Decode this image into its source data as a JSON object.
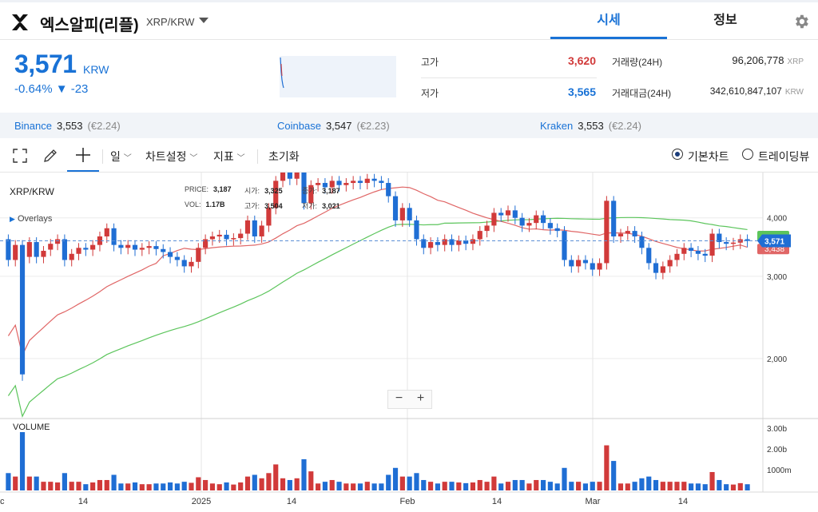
{
  "header": {
    "coin_name": "엑스알피(리플)",
    "pair": "XRP/KRW",
    "tabs": [
      "시세",
      "정보"
    ]
  },
  "ticker": {
    "price": "3,571",
    "unit": "KRW",
    "change_pct": "-0.64%",
    "change_abs": "▼ -23"
  },
  "stats": {
    "high_label": "고가",
    "high_value": "3,620",
    "low_label": "저가",
    "low_value": "3,565",
    "volume_label": "거래량(24H)",
    "volume_value": "96,206,778",
    "volume_unit": "XRP",
    "amount_label": "거래대금(24H)",
    "amount_value": "342,610,847,107",
    "amount_unit": "KRW"
  },
  "exchanges": [
    {
      "name": "Binance",
      "price": "3,553",
      "sub": "(€2.24)"
    },
    {
      "name": "Coinbase",
      "price": "3,547",
      "sub": "(€2.23)"
    },
    {
      "name": "Kraken",
      "price": "3,553",
      "sub": "(€2.24)"
    }
  ],
  "toolbar": {
    "period": "일",
    "chart_settings": "차트설정",
    "indicators": "지표",
    "reset": "초기화",
    "basic_chart": "기본차트",
    "tradingview": "트레이딩뷰"
  },
  "chart": {
    "symbol": "XRP/KRW",
    "overlays": "Overlays",
    "ohlc": {
      "price_label": "PRICE:",
      "price": "3,187",
      "open_label": "시가:",
      "open": "3,325",
      "close_label": "종가:",
      "close": "3,187",
      "vol_label": "VOL:",
      "vol": "1.17B",
      "high_label": "고가:",
      "high": "3,504",
      "low_label": "저가:",
      "low": "3,021"
    },
    "y_ticks": [
      "4,000",
      "3,000",
      "2,000"
    ],
    "current_price_tag": "3,571",
    "green_tag": "3,6xx",
    "red_tag": "3,438",
    "volume_label": "VOLUME",
    "volume_ticks": [
      "3.00b",
      "2.00b",
      "1000m"
    ],
    "x_ticks": [
      "c",
      "14",
      "2025",
      "14",
      "Feb",
      "14",
      "Mar",
      "14"
    ],
    "zoom_minus": "−",
    "zoom_plus": "+"
  },
  "colors": {
    "accent": "#1972d6",
    "up": "#d13a3a",
    "down": "#1f6ed4",
    "ma_long": "#5cc55c",
    "ma_short": "#e06666"
  },
  "chart_data": {
    "type": "candlestick",
    "title": "XRP/KRW",
    "ylim": [
      1500,
      5000
    ],
    "y_scale": "log",
    "candles": [
      {
        "o": 3600,
        "c": 3250,
        "dir": "down"
      },
      {
        "o": 3250,
        "c": 3500,
        "dir": "up"
      },
      {
        "o": 3500,
        "c": 1850,
        "dir": "down"
      },
      {
        "o": 3300,
        "c": 3550,
        "dir": "up"
      },
      {
        "o": 3550,
        "c": 3300,
        "dir": "down"
      },
      {
        "o": 3300,
        "c": 3400,
        "dir": "up"
      },
      {
        "o": 3420,
        "c": 3520,
        "dir": "up"
      },
      {
        "o": 3520,
        "c": 3600,
        "dir": "up"
      },
      {
        "o": 3600,
        "c": 3250,
        "dir": "down"
      },
      {
        "o": 3250,
        "c": 3350,
        "dir": "up"
      },
      {
        "o": 3350,
        "c": 3450,
        "dir": "up"
      },
      {
        "o": 3450,
        "c": 3420,
        "dir": "down"
      },
      {
        "o": 3420,
        "c": 3500,
        "dir": "up"
      },
      {
        "o": 3500,
        "c": 3650,
        "dir": "up"
      },
      {
        "o": 3650,
        "c": 3800,
        "dir": "up"
      },
      {
        "o": 3800,
        "c": 3500,
        "dir": "down"
      },
      {
        "o": 3500,
        "c": 3450,
        "dir": "down"
      },
      {
        "o": 3450,
        "c": 3500,
        "dir": "up"
      },
      {
        "o": 3500,
        "c": 3420,
        "dir": "down"
      },
      {
        "o": 3420,
        "c": 3450,
        "dir": "up"
      },
      {
        "o": 3450,
        "c": 3480,
        "dir": "up"
      },
      {
        "o": 3480,
        "c": 3430,
        "dir": "down"
      },
      {
        "o": 3430,
        "c": 3380,
        "dir": "down"
      },
      {
        "o": 3380,
        "c": 3300,
        "dir": "down"
      },
      {
        "o": 3300,
        "c": 3250,
        "dir": "down"
      },
      {
        "o": 3250,
        "c": 3150,
        "dir": "down"
      },
      {
        "o": 3150,
        "c": 3220,
        "dir": "up"
      },
      {
        "o": 3220,
        "c": 3450,
        "dir": "up"
      },
      {
        "o": 3450,
        "c": 3600,
        "dir": "up"
      },
      {
        "o": 3600,
        "c": 3650,
        "dir": "up"
      },
      {
        "o": 3650,
        "c": 3680,
        "dir": "up"
      },
      {
        "o": 3680,
        "c": 3600,
        "dir": "down"
      },
      {
        "o": 3600,
        "c": 3620,
        "dir": "up"
      },
      {
        "o": 3620,
        "c": 3700,
        "dir": "up"
      },
      {
        "o": 3700,
        "c": 3950,
        "dir": "up"
      },
      {
        "o": 3950,
        "c": 3650,
        "dir": "down"
      },
      {
        "o": 3650,
        "c": 3850,
        "dir": "up"
      },
      {
        "o": 3850,
        "c": 4200,
        "dir": "up"
      },
      {
        "o": 4200,
        "c": 4800,
        "dir": "up"
      },
      {
        "o": 4800,
        "c": 5000,
        "dir": "up"
      },
      {
        "o": 5000,
        "c": 4850,
        "dir": "down"
      },
      {
        "o": 4850,
        "c": 5050,
        "dir": "up"
      },
      {
        "o": 5050,
        "c": 4300,
        "dir": "down"
      },
      {
        "o": 4300,
        "c": 4700,
        "dir": "up"
      },
      {
        "o": 4700,
        "c": 4750,
        "dir": "up"
      },
      {
        "o": 4750,
        "c": 4650,
        "dir": "down"
      },
      {
        "o": 4650,
        "c": 4800,
        "dir": "up"
      },
      {
        "o": 4800,
        "c": 4700,
        "dir": "down"
      },
      {
        "o": 4700,
        "c": 4750,
        "dir": "up"
      },
      {
        "o": 4750,
        "c": 4800,
        "dir": "up"
      },
      {
        "o": 4800,
        "c": 4750,
        "dir": "down"
      },
      {
        "o": 4750,
        "c": 4850,
        "dir": "up"
      },
      {
        "o": 4850,
        "c": 4800,
        "dir": "down"
      },
      {
        "o": 4800,
        "c": 4750,
        "dir": "down"
      },
      {
        "o": 4750,
        "c": 4450,
        "dir": "down"
      },
      {
        "o": 4450,
        "c": 3950,
        "dir": "down"
      },
      {
        "o": 3950,
        "c": 4200,
        "dir": "up"
      },
      {
        "o": 4200,
        "c": 3950,
        "dir": "down"
      },
      {
        "o": 3950,
        "c": 3600,
        "dir": "down"
      },
      {
        "o": 3600,
        "c": 3450,
        "dir": "down"
      },
      {
        "o": 3450,
        "c": 3550,
        "dir": "up"
      },
      {
        "o": 3550,
        "c": 3500,
        "dir": "down"
      },
      {
        "o": 3500,
        "c": 3600,
        "dir": "up"
      },
      {
        "o": 3600,
        "c": 3500,
        "dir": "down"
      },
      {
        "o": 3500,
        "c": 3580,
        "dir": "up"
      },
      {
        "o": 3580,
        "c": 3520,
        "dir": "down"
      },
      {
        "o": 3520,
        "c": 3600,
        "dir": "up"
      },
      {
        "o": 3600,
        "c": 3750,
        "dir": "up"
      },
      {
        "o": 3750,
        "c": 3850,
        "dir": "up"
      },
      {
        "o": 3850,
        "c": 4100,
        "dir": "up"
      },
      {
        "o": 4100,
        "c": 4050,
        "dir": "down"
      },
      {
        "o": 4050,
        "c": 4150,
        "dir": "up"
      },
      {
        "o": 4150,
        "c": 4000,
        "dir": "down"
      },
      {
        "o": 4000,
        "c": 3850,
        "dir": "down"
      },
      {
        "o": 3850,
        "c": 3900,
        "dir": "up"
      },
      {
        "o": 3900,
        "c": 4050,
        "dir": "up"
      },
      {
        "o": 4050,
        "c": 3900,
        "dir": "down"
      },
      {
        "o": 3900,
        "c": 3800,
        "dir": "down"
      },
      {
        "o": 3800,
        "c": 3750,
        "dir": "down"
      },
      {
        "o": 3750,
        "c": 3250,
        "dir": "down"
      },
      {
        "o": 3250,
        "c": 3150,
        "dir": "down"
      },
      {
        "o": 3150,
        "c": 3250,
        "dir": "up"
      },
      {
        "o": 3250,
        "c": 3200,
        "dir": "down"
      },
      {
        "o": 3200,
        "c": 3100,
        "dir": "down"
      },
      {
        "o": 3100,
        "c": 3200,
        "dir": "up"
      },
      {
        "o": 3200,
        "c": 4350,
        "dir": "up"
      },
      {
        "o": 4350,
        "c": 3650,
        "dir": "down"
      },
      {
        "o": 3650,
        "c": 3700,
        "dir": "up"
      },
      {
        "o": 3700,
        "c": 3750,
        "dir": "up"
      },
      {
        "o": 3750,
        "c": 3650,
        "dir": "down"
      },
      {
        "o": 3650,
        "c": 3450,
        "dir": "down"
      },
      {
        "o": 3450,
        "c": 3200,
        "dir": "down"
      },
      {
        "o": 3200,
        "c": 3050,
        "dir": "down"
      },
      {
        "o": 3050,
        "c": 3150,
        "dir": "up"
      },
      {
        "o": 3150,
        "c": 3250,
        "dir": "up"
      },
      {
        "o": 3250,
        "c": 3350,
        "dir": "up"
      },
      {
        "o": 3350,
        "c": 3450,
        "dir": "up"
      },
      {
        "o": 3450,
        "c": 3400,
        "dir": "down"
      },
      {
        "o": 3400,
        "c": 3350,
        "dir": "down"
      },
      {
        "o": 3350,
        "c": 3320,
        "dir": "down"
      },
      {
        "o": 3320,
        "c": 3700,
        "dir": "up"
      },
      {
        "o": 3700,
        "c": 3550,
        "dir": "down"
      },
      {
        "o": 3550,
        "c": 3520,
        "dir": "down"
      },
      {
        "o": 3520,
        "c": 3540,
        "dir": "up"
      },
      {
        "o": 3540,
        "c": 3600,
        "dir": "up"
      },
      {
        "o": 3600,
        "c": 3571,
        "dir": "down"
      }
    ],
    "volume_label": "VOLUME"
  }
}
